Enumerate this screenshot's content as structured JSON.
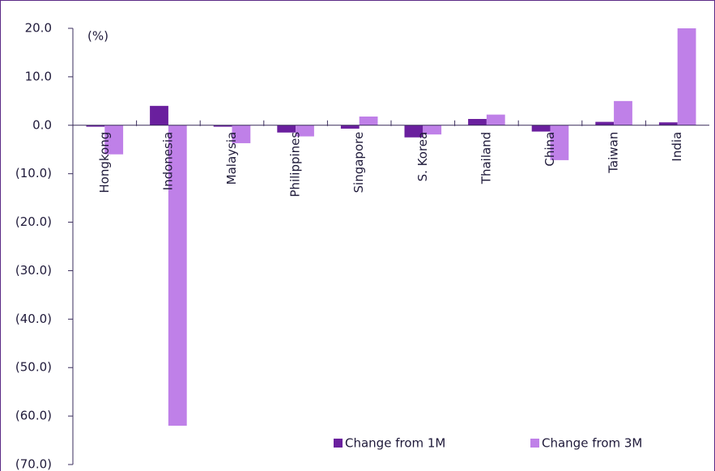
{
  "chart_data": {
    "type": "bar",
    "annotation": "(%)",
    "categories": [
      "Hongkong",
      "Indonesia",
      "Malaysia",
      "Philippines",
      "Singapore",
      "S. Korea",
      "Thailand",
      "China",
      "Taiwan",
      "India"
    ],
    "series": [
      {
        "name": "Change from 1M",
        "color": "#6a1f9e",
        "values": [
          -0.3,
          4.0,
          -0.3,
          -1.5,
          -0.7,
          -2.5,
          1.3,
          -1.3,
          0.7,
          0.6
        ]
      },
      {
        "name": "Change from 3M",
        "color": "#bf80e8",
        "values": [
          -6.0,
          -62.0,
          -3.7,
          -2.3,
          1.8,
          -1.9,
          2.2,
          -7.2,
          5.0,
          20.0
        ]
      }
    ],
    "ylim": [
      -70,
      20
    ],
    "yticks": [
      {
        "value": 20,
        "label": "20.0"
      },
      {
        "value": 10,
        "label": "10.0"
      },
      {
        "value": 0,
        "label": "0.0"
      },
      {
        "value": -10,
        "label": "(10.0)"
      },
      {
        "value": -20,
        "label": "(20.0)"
      },
      {
        "value": -30,
        "label": "(30.0)"
      },
      {
        "value": -40,
        "label": "(40.0)"
      },
      {
        "value": -50,
        "label": "(50.0)"
      },
      {
        "value": -60,
        "label": "(60.0)"
      },
      {
        "value": -70,
        "label": "(70.0)"
      }
    ],
    "legend": "bottom-right"
  }
}
